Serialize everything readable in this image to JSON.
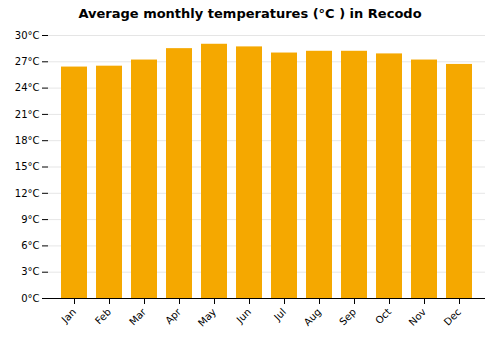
{
  "chart_data": {
    "type": "bar",
    "title": "Average monthly temperatures (°C ) in Recodo",
    "categories": [
      "Jan",
      "Feb",
      "Mar",
      "Apr",
      "May",
      "Jun",
      "Jul",
      "Aug",
      "Sep",
      "Oct",
      "Nov",
      "Dec"
    ],
    "values": [
      26.4,
      26.5,
      27.2,
      28.5,
      29.0,
      28.7,
      28.0,
      28.2,
      28.2,
      27.9,
      27.2,
      26.7
    ],
    "color": "#F5A800",
    "ylim": [
      0,
      30
    ],
    "yticks": [
      {
        "value": 0,
        "label": "0°C"
      },
      {
        "value": 3,
        "label": "3°C"
      },
      {
        "value": 6,
        "label": "6°C"
      },
      {
        "value": 9,
        "label": "9°C"
      },
      {
        "value": 12,
        "label": "12°C"
      },
      {
        "value": 15,
        "label": "15°C"
      },
      {
        "value": 18,
        "label": "18°C"
      },
      {
        "value": 21,
        "label": "21°C"
      },
      {
        "value": 24,
        "label": "24°C"
      },
      {
        "value": 27,
        "label": "27°C"
      },
      {
        "value": 30,
        "label": "30°C"
      }
    ],
    "grid": true
  }
}
